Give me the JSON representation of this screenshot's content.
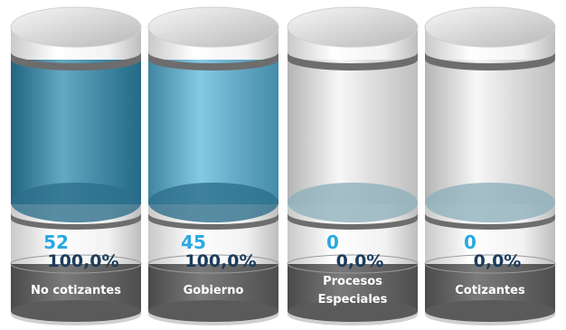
{
  "cylinders": [
    {
      "count": 52,
      "percent": "100,0%",
      "label": "No cotizantes",
      "color": "#1b7ea6"
    },
    {
      "count": 45,
      "percent": "100,0%",
      "label": "Gobierno",
      "color": "#4aaed6"
    },
    {
      "count": 0,
      "percent": "0,0%",
      "label": "Procesos Especiales",
      "color": "#f4f4f4"
    },
    {
      "count": 0,
      "percent": "0,0%",
      "label": "Cotizantes",
      "color": "#f4f4f4"
    }
  ]
}
